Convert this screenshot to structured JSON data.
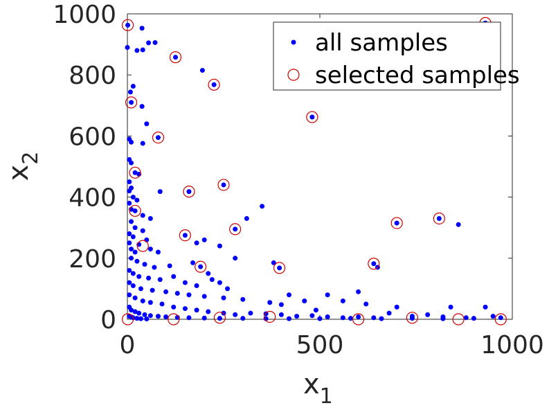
{
  "chart_data": {
    "type": "scatter",
    "xlabel": "x",
    "xlabel_sub": "1",
    "ylabel": "x",
    "ylabel_sub": "2",
    "xlim": [
      0,
      1000
    ],
    "ylim": [
      0,
      1000
    ],
    "xticks": [
      0,
      500,
      1000
    ],
    "yticks": [
      0,
      200,
      400,
      600,
      800,
      1000
    ],
    "grid": false,
    "legend_position": "top-right",
    "colors": {
      "all": "#0000ff",
      "selected": "#cc0000",
      "axis": "#262626"
    },
    "series": [
      {
        "name": "all samples",
        "marker": "filled-dot",
        "points": [
          [
            1,
            963
          ],
          [
            38,
            953
          ],
          [
            0,
            890
          ],
          [
            25,
            880
          ],
          [
            40,
            882
          ],
          [
            55,
            905
          ],
          [
            72,
            906
          ],
          [
            125,
            858
          ],
          [
            195,
            815
          ],
          [
            225,
            768
          ],
          [
            930,
            970
          ],
          [
            8,
            744
          ],
          [
            15,
            763
          ],
          [
            10,
            710
          ],
          [
            38,
            697
          ],
          [
            480,
            662
          ],
          [
            50,
            640
          ],
          [
            80,
            595
          ],
          [
            40,
            576
          ],
          [
            5,
            590
          ],
          [
            10,
            580
          ],
          [
            5,
            523
          ],
          [
            10,
            512
          ],
          [
            20,
            480
          ],
          [
            30,
            475
          ],
          [
            5,
            450
          ],
          [
            10,
            430
          ],
          [
            5,
            420
          ],
          [
            15,
            400
          ],
          [
            25,
            390
          ],
          [
            85,
            418
          ],
          [
            160,
            418
          ],
          [
            250,
            440
          ],
          [
            5,
            380
          ],
          [
            10,
            360
          ],
          [
            20,
            355
          ],
          [
            40,
            340
          ],
          [
            60,
            330
          ],
          [
            10,
            320
          ],
          [
            20,
            300
          ],
          [
            40,
            290
          ],
          [
            5,
            280
          ],
          [
            15,
            270
          ],
          [
            50,
            260
          ],
          [
            30,
            245
          ],
          [
            60,
            230
          ],
          [
            80,
            220
          ],
          [
            150,
            275
          ],
          [
            200,
            260
          ],
          [
            280,
            295
          ],
          [
            310,
            330
          ],
          [
            350,
            370
          ],
          [
            180,
            250
          ],
          [
            240,
            240
          ],
          [
            700,
            315
          ],
          [
            810,
            330
          ],
          [
            860,
            310
          ],
          [
            5,
            250
          ],
          [
            10,
            230
          ],
          [
            20,
            220
          ],
          [
            10,
            200
          ],
          [
            25,
            190
          ],
          [
            45,
            180
          ],
          [
            70,
            170
          ],
          [
            110,
            175
          ],
          [
            170,
            185
          ],
          [
            190,
            172
          ],
          [
            280,
            200
          ],
          [
            380,
            185
          ],
          [
            395,
            168
          ],
          [
            640,
            182
          ],
          [
            650,
            170
          ],
          [
            5,
            160
          ],
          [
            15,
            150
          ],
          [
            30,
            140
          ],
          [
            55,
            135
          ],
          [
            85,
            130
          ],
          [
            120,
            140
          ],
          [
            150,
            120
          ],
          [
            180,
            110
          ],
          [
            210,
            150
          ],
          [
            220,
            130
          ],
          [
            240,
            120
          ],
          [
            260,
            100
          ],
          [
            5,
            120
          ],
          [
            15,
            110
          ],
          [
            35,
            100
          ],
          [
            65,
            95
          ],
          [
            100,
            90
          ],
          [
            130,
            85
          ],
          [
            160,
            80
          ],
          [
            200,
            75
          ],
          [
            250,
            70
          ],
          [
            300,
            65
          ],
          [
            370,
            55
          ],
          [
            400,
            48
          ],
          [
            420,
            80
          ],
          [
            460,
            60
          ],
          [
            490,
            30
          ],
          [
            520,
            80
          ],
          [
            560,
            60
          ],
          [
            600,
            90
          ],
          [
            620,
            50
          ],
          [
            5,
            80
          ],
          [
            20,
            70
          ],
          [
            40,
            60
          ],
          [
            60,
            55
          ],
          [
            90,
            50
          ],
          [
            120,
            40
          ],
          [
            150,
            35
          ],
          [
            180,
            30
          ],
          [
            210,
            25
          ],
          [
            250,
            20
          ],
          [
            280,
            15
          ],
          [
            320,
            20
          ],
          [
            360,
            18
          ],
          [
            400,
            15
          ],
          [
            440,
            10
          ],
          [
            480,
            12
          ],
          [
            520,
            8
          ],
          [
            560,
            5
          ],
          [
            600,
            8
          ],
          [
            640,
            5
          ],
          [
            680,
            20
          ],
          [
            700,
            40
          ],
          [
            740,
            10
          ],
          [
            780,
            15
          ],
          [
            820,
            8
          ],
          [
            840,
            40
          ],
          [
            880,
            5
          ],
          [
            900,
            3
          ],
          [
            930,
            40
          ],
          [
            950,
            10
          ],
          [
            970,
            5
          ],
          [
            5,
            40
          ],
          [
            10,
            30
          ],
          [
            20,
            25
          ],
          [
            30,
            20
          ],
          [
            45,
            15
          ],
          [
            60,
            12
          ],
          [
            80,
            10
          ],
          [
            100,
            8
          ],
          [
            130,
            6
          ],
          [
            160,
            5
          ],
          [
            200,
            4
          ],
          [
            240,
            3
          ],
          [
            300,
            3
          ],
          [
            360,
            2
          ],
          [
            420,
            2
          ],
          [
            500,
            2
          ],
          [
            580,
            3
          ],
          [
            660,
            2
          ],
          [
            740,
            3
          ],
          [
            820,
            2
          ],
          [
            5,
            10
          ],
          [
            10,
            8
          ],
          [
            15,
            5
          ],
          [
            25,
            3
          ],
          [
            35,
            2
          ],
          [
            50,
            1
          ]
        ]
      },
      {
        "name": "selected samples",
        "marker": "open-circle",
        "points": [
          [
            1,
            963
          ],
          [
            125,
            858
          ],
          [
            225,
            768
          ],
          [
            930,
            970
          ],
          [
            10,
            710
          ],
          [
            480,
            662
          ],
          [
            80,
            595
          ],
          [
            20,
            480
          ],
          [
            160,
            418
          ],
          [
            250,
            440
          ],
          [
            20,
            355
          ],
          [
            40,
            240
          ],
          [
            150,
            275
          ],
          [
            280,
            295
          ],
          [
            700,
            315
          ],
          [
            810,
            330
          ],
          [
            190,
            172
          ],
          [
            395,
            168
          ],
          [
            640,
            182
          ],
          [
            1,
            0
          ],
          [
            120,
            0
          ],
          [
            240,
            5
          ],
          [
            370,
            8
          ],
          [
            600,
            0
          ],
          [
            740,
            5
          ],
          [
            860,
            0
          ],
          [
            970,
            0
          ]
        ]
      }
    ]
  }
}
